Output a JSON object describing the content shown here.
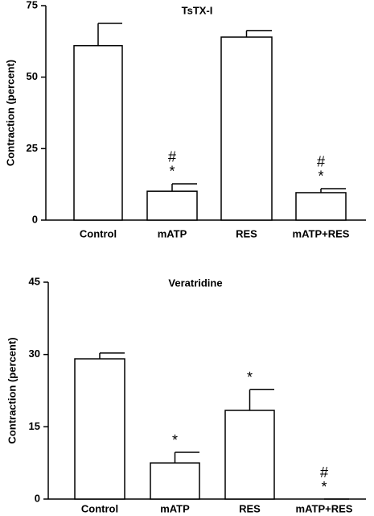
{
  "chart_data": [
    {
      "type": "bar",
      "title": "TsTX-I",
      "y_label": "Contraction (percent)",
      "categories": [
        "Control",
        "mATP",
        "RES",
        "mATP+RES"
      ],
      "series": [
        {
          "color": "#ffffff",
          "values": [
            61,
            10.1,
            64,
            9.6
          ],
          "errors": [
            7.8,
            2.6,
            2.3,
            1.4
          ]
        }
      ],
      "ylim": [
        0,
        75
      ],
      "yticks": [
        0,
        25,
        50,
        75
      ],
      "annotations": [
        {
          "category": "mATP",
          "text": "*"
        },
        {
          "category": "mATP",
          "text": "#"
        },
        {
          "category": "mATP+RES",
          "text": "*"
        },
        {
          "category": "mATP+RES",
          "text": "#"
        }
      ]
    },
    {
      "type": "bar",
      "title": "Veratridine",
      "y_label": "Contraction (percent)",
      "categories": [
        "Control",
        "mATP",
        "RES",
        "mATP+RES"
      ],
      "series": [
        {
          "color": "#ffffff",
          "values": [
            29.1,
            7.5,
            18.4,
            0
          ],
          "errors": [
            1.2,
            2.2,
            4.3,
            0
          ]
        }
      ],
      "ylim": [
        0,
        45
      ],
      "yticks": [
        0,
        15,
        30,
        45
      ],
      "annotations": [
        {
          "category": "mATP",
          "text": "*"
        },
        {
          "category": "RES",
          "text": "*"
        },
        {
          "category": "mATP+RES",
          "text": "*"
        },
        {
          "category": "mATP+RES",
          "text": "#"
        }
      ]
    }
  ]
}
